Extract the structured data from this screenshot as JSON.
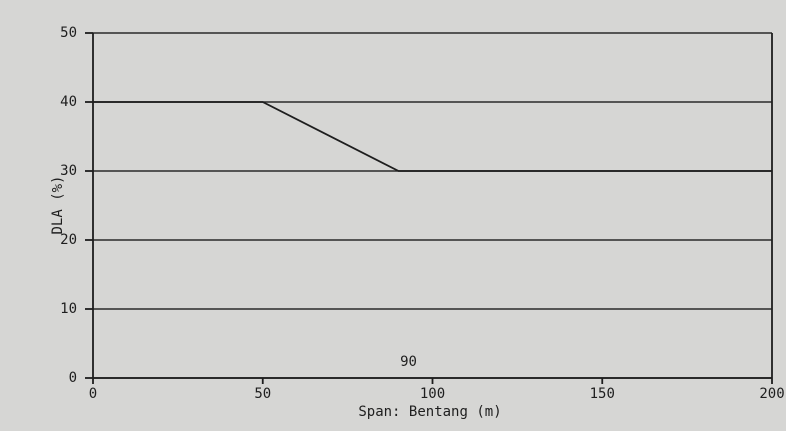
{
  "chart_data": {
    "type": "line",
    "xlabel": "Span:  Bentang (m)",
    "ylabel": "DLA (%)",
    "x": [
      0,
      50,
      90,
      200
    ],
    "series": [
      {
        "color": "#1e1e1e",
        "values": [
          40,
          40,
          30,
          30
        ]
      }
    ],
    "xlim": [
      0,
      200
    ],
    "xticks": [
      0,
      50,
      100,
      150,
      200
    ],
    "ylim": [
      0,
      50
    ],
    "yticks": [
      0,
      10,
      20,
      30,
      40,
      50
    ],
    "grid": true,
    "annotations": [
      {
        "text": "90",
        "x": 90
      }
    ]
  }
}
